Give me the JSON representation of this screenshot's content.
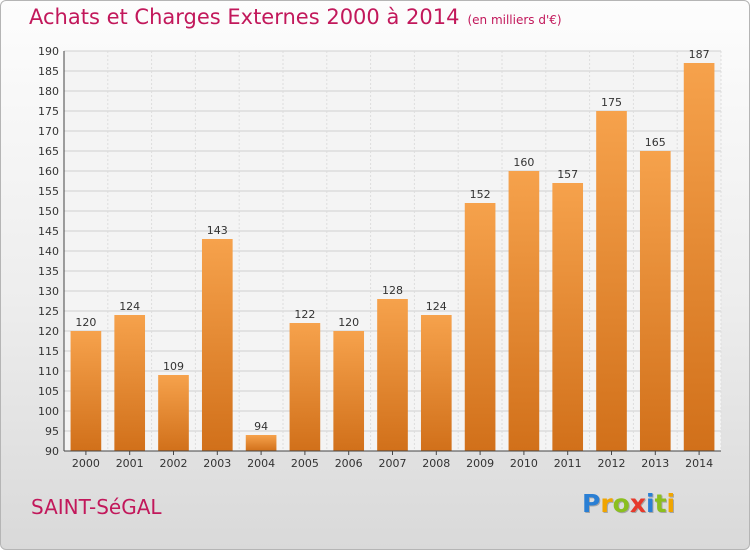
{
  "title": {
    "main": "Achats et Charges Externes 2000 à 2014",
    "unit": "(en milliers d'€)"
  },
  "footer": {
    "place": "SAINT-SéGAL",
    "brand": "Proxiti"
  },
  "colors": {
    "title": "#c2185b",
    "bar_light": "#f6a24c",
    "bar_dark": "#d1701a",
    "grid": "#cfcfcf"
  },
  "chart_data": {
    "type": "bar",
    "categories": [
      "2000",
      "2001",
      "2002",
      "2003",
      "2004",
      "2005",
      "2006",
      "2007",
      "2008",
      "2009",
      "2010",
      "2011",
      "2012",
      "2013",
      "2014"
    ],
    "values": [
      120,
      124,
      109,
      143,
      94,
      122,
      120,
      128,
      124,
      152,
      160,
      157,
      175,
      165,
      187
    ],
    "ylim": [
      90,
      190
    ],
    "yticks": [
      90,
      95,
      100,
      105,
      110,
      115,
      120,
      125,
      130,
      135,
      140,
      145,
      150,
      155,
      160,
      165,
      170,
      175,
      180,
      185,
      190
    ],
    "grid": true,
    "data_labels": true
  }
}
